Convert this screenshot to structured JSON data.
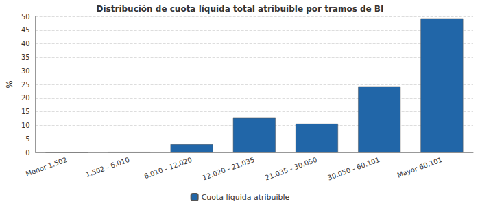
{
  "chart_data": {
    "type": "bar",
    "title": "Distribución de cuota líquida total atribuible por tramos de BI",
    "y_label": "%",
    "categories": [
      "Menor 1.502",
      "1.502 - 6.010",
      "6.010 - 12.020",
      "12.020 - 21.035",
      "21.035 - 30.050",
      "30.050 - 60.101",
      "Mayor 60.101"
    ],
    "series": [
      {
        "name": "Cuota líquida atribuible",
        "color": "#2166a8",
        "values": [
          0.1,
          0.2,
          3.0,
          12.7,
          10.6,
          24.3,
          49.3
        ]
      }
    ],
    "ylim": [
      0,
      50
    ],
    "yticks": [
      0,
      5,
      10,
      15,
      20,
      25,
      30,
      35,
      40,
      45,
      50
    ],
    "grid": true,
    "legend": "bottom"
  }
}
